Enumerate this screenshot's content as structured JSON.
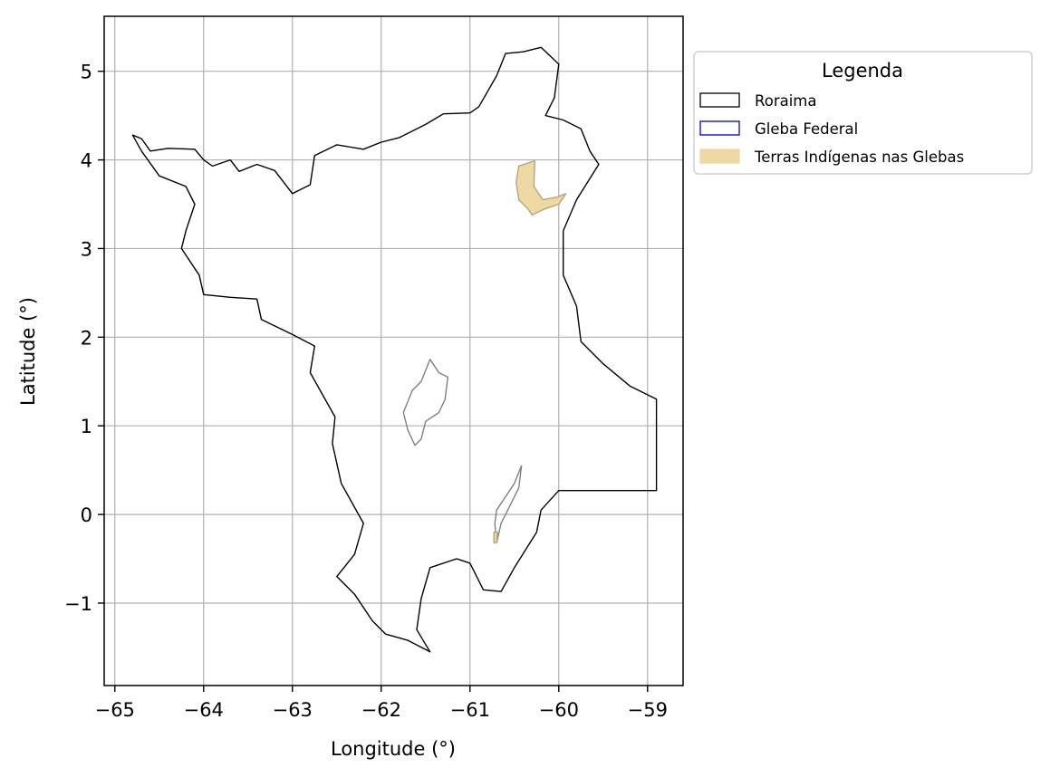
{
  "chart_data": {
    "type": "map",
    "title": "",
    "xlabel": "Longitude (°)",
    "ylabel": "Latitude (°)",
    "xlim": [
      -65.12,
      -58.6
    ],
    "ylim": [
      -1.93,
      5.62
    ],
    "x_ticks": [
      -65,
      -64,
      -63,
      -62,
      -61,
      -60,
      -59
    ],
    "y_ticks": [
      -1,
      0,
      1,
      2,
      3,
      4,
      5
    ],
    "x_tick_labels": [
      "−65",
      "−64",
      "−63",
      "−62",
      "−61",
      "−60",
      "−59"
    ],
    "y_tick_labels": [
      "−1",
      "0",
      "1",
      "2",
      "3",
      "4",
      "5"
    ],
    "grid": true,
    "legend": {
      "title": "Legenda",
      "placement": "outside-upper-right",
      "entries": [
        {
          "label": "Roraima",
          "style": "outline",
          "edge_color": "#000000",
          "fill": "none"
        },
        {
          "label": "Gleba Federal",
          "style": "outline",
          "edge_color": "#0000cc",
          "fill": "none"
        },
        {
          "label": "Terras Indígenas nas Glebas",
          "style": "filled",
          "edge_color": "#eed9a4",
          "fill": "#eed9a4"
        }
      ]
    },
    "layers": [
      {
        "name": "Roraima",
        "stroke": "#000000",
        "fill": "none",
        "polygons": [
          [
            [
              -64.8,
              4.28
            ],
            [
              -64.7,
              4.24
            ],
            [
              -64.6,
              4.1
            ],
            [
              -64.4,
              4.13
            ],
            [
              -64.1,
              4.12
            ],
            [
              -64.0,
              4.0
            ],
            [
              -63.9,
              3.93
            ],
            [
              -63.7,
              4.0
            ],
            [
              -63.6,
              3.87
            ],
            [
              -63.4,
              3.95
            ],
            [
              -63.2,
              3.88
            ],
            [
              -63.0,
              3.62
            ],
            [
              -62.8,
              3.72
            ],
            [
              -62.75,
              4.05
            ],
            [
              -62.5,
              4.17
            ],
            [
              -62.2,
              4.12
            ],
            [
              -62.0,
              4.2
            ],
            [
              -61.8,
              4.25
            ],
            [
              -61.5,
              4.4
            ],
            [
              -61.3,
              4.52
            ],
            [
              -61.0,
              4.53
            ],
            [
              -60.9,
              4.6
            ],
            [
              -60.7,
              4.95
            ],
            [
              -60.6,
              5.2
            ],
            [
              -60.4,
              5.22
            ],
            [
              -60.2,
              5.27
            ],
            [
              -60.0,
              5.08
            ],
            [
              -60.05,
              4.7
            ],
            [
              -60.15,
              4.5
            ],
            [
              -59.95,
              4.45
            ],
            [
              -59.75,
              4.35
            ],
            [
              -59.65,
              4.1
            ],
            [
              -59.55,
              3.95
            ],
            [
              -59.8,
              3.55
            ],
            [
              -59.95,
              3.2
            ],
            [
              -59.95,
              2.7
            ],
            [
              -59.8,
              2.35
            ],
            [
              -59.75,
              1.95
            ],
            [
              -59.5,
              1.7
            ],
            [
              -59.2,
              1.45
            ],
            [
              -58.9,
              1.3
            ],
            [
              -58.9,
              0.27
            ],
            [
              -60.0,
              0.27
            ],
            [
              -60.2,
              0.05
            ],
            [
              -60.25,
              -0.2
            ],
            [
              -60.5,
              -0.6
            ],
            [
              -60.65,
              -0.87
            ],
            [
              -60.85,
              -0.85
            ],
            [
              -61.0,
              -0.55
            ],
            [
              -61.15,
              -0.5
            ],
            [
              -61.45,
              -0.6
            ],
            [
              -61.55,
              -0.95
            ],
            [
              -61.6,
              -1.3
            ],
            [
              -61.45,
              -1.55
            ],
            [
              -61.7,
              -1.42
            ],
            [
              -61.95,
              -1.35
            ],
            [
              -62.1,
              -1.2
            ],
            [
              -62.3,
              -0.9
            ],
            [
              -62.5,
              -0.7
            ],
            [
              -62.3,
              -0.45
            ],
            [
              -62.2,
              -0.1
            ],
            [
              -62.45,
              0.35
            ],
            [
              -62.55,
              0.8
            ],
            [
              -62.52,
              1.1
            ],
            [
              -62.8,
              1.6
            ],
            [
              -62.75,
              1.9
            ],
            [
              -63.0,
              2.03
            ],
            [
              -63.35,
              2.2
            ],
            [
              -63.4,
              2.43
            ],
            [
              -63.7,
              2.45
            ],
            [
              -64.0,
              2.48
            ],
            [
              -64.05,
              2.7
            ],
            [
              -64.25,
              3.0
            ],
            [
              -64.2,
              3.2
            ],
            [
              -64.1,
              3.5
            ],
            [
              -64.2,
              3.7
            ],
            [
              -64.5,
              3.82
            ],
            [
              -64.7,
              4.1
            ],
            [
              -64.8,
              4.28
            ]
          ]
        ]
      },
      {
        "name": "Gleba Federal",
        "stroke": "#808080",
        "fill": "none",
        "polygons": [
          [
            [
              -61.45,
              1.75
            ],
            [
              -61.35,
              1.6
            ],
            [
              -61.25,
              1.55
            ],
            [
              -61.28,
              1.3
            ],
            [
              -61.35,
              1.15
            ],
            [
              -61.5,
              1.05
            ],
            [
              -61.55,
              0.85
            ],
            [
              -61.62,
              0.78
            ],
            [
              -61.7,
              0.95
            ],
            [
              -61.75,
              1.15
            ],
            [
              -61.65,
              1.4
            ],
            [
              -61.55,
              1.5
            ],
            [
              -61.45,
              1.75
            ]
          ],
          [
            [
              -60.42,
              0.55
            ],
            [
              -60.45,
              0.3
            ],
            [
              -60.55,
              0.1
            ],
            [
              -60.65,
              -0.1
            ],
            [
              -60.7,
              -0.32
            ],
            [
              -60.72,
              -0.1
            ],
            [
              -60.7,
              0.05
            ],
            [
              -60.6,
              0.2
            ],
            [
              -60.5,
              0.35
            ],
            [
              -60.42,
              0.55
            ]
          ]
        ]
      },
      {
        "name": "Terras Indígenas nas Glebas",
        "stroke": "#b8a37a",
        "fill": "#eed9a4",
        "polygons": [
          [
            [
              -60.27,
              3.99
            ],
            [
              -60.28,
              3.7
            ],
            [
              -60.18,
              3.55
            ],
            [
              -60.02,
              3.58
            ],
            [
              -59.92,
              3.62
            ],
            [
              -60.0,
              3.5
            ],
            [
              -60.15,
              3.45
            ],
            [
              -60.3,
              3.38
            ],
            [
              -60.35,
              3.45
            ],
            [
              -60.45,
              3.55
            ],
            [
              -60.48,
              3.75
            ],
            [
              -60.45,
              3.93
            ],
            [
              -60.27,
              3.99
            ]
          ],
          [
            [
              -60.69,
              -0.2
            ],
            [
              -60.7,
              -0.32
            ],
            [
              -60.73,
              -0.32
            ],
            [
              -60.73,
              -0.2
            ],
            [
              -60.69,
              -0.2
            ]
          ]
        ]
      }
    ]
  }
}
